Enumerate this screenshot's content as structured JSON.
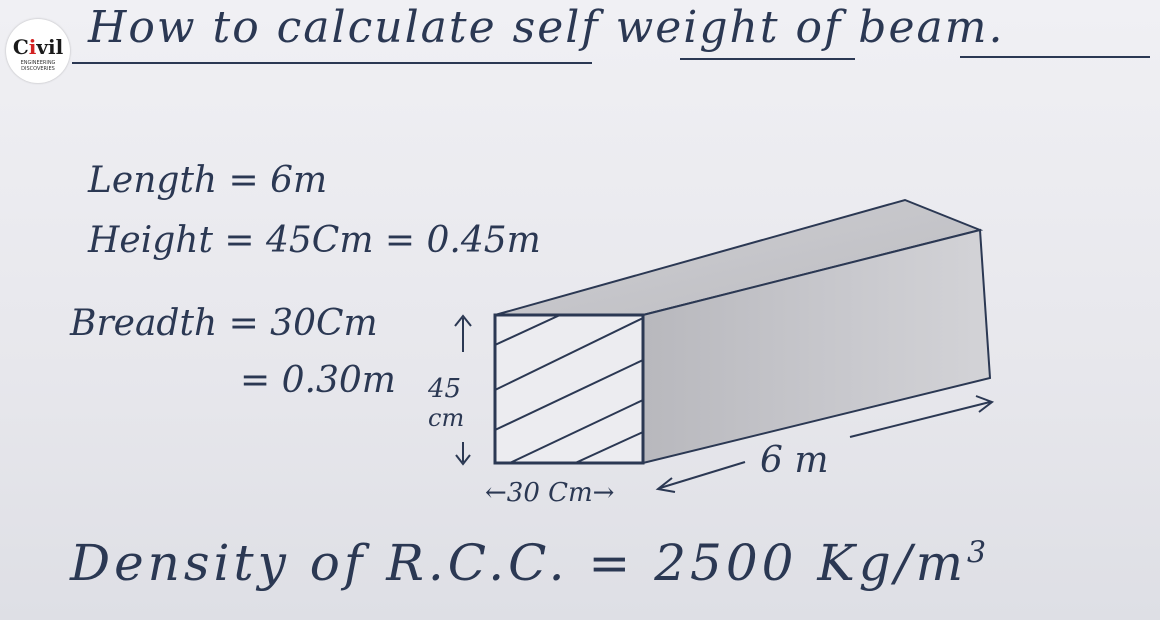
{
  "logo": {
    "text_main": "Civil",
    "text_accent": "i",
    "subtitle": "ENGINEERING DISCOVERIES"
  },
  "title": "How to calculate self weight of beam.",
  "given": {
    "length": "Length = 6m",
    "height": "Height = 45Cm = 0.45m",
    "breadth": "Breadth = 30Cm",
    "breadth_m": "= 0.30m"
  },
  "diagram": {
    "height_value": "45",
    "height_unit": "cm",
    "width_label": "←30 Cm→",
    "length_label": "6 m"
  },
  "density": {
    "text": "Density of R.C.C. = 2500 Kg/m",
    "exponent": "3"
  },
  "colors": {
    "ink": "#2b3853",
    "beam_shade": "#c4c4c8",
    "logo_accent": "#d32222"
  }
}
